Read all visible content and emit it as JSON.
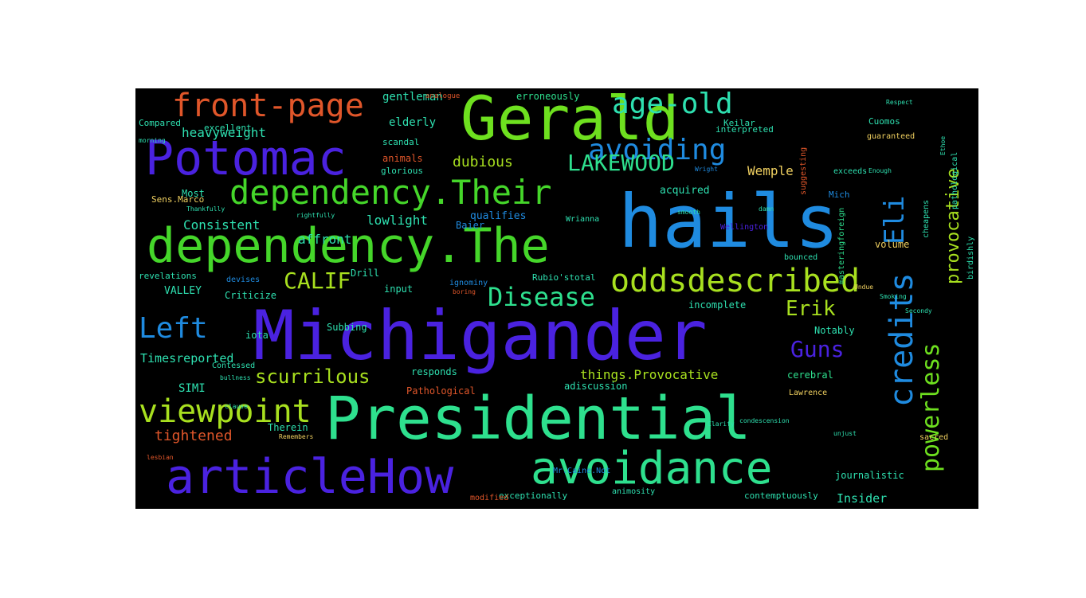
{
  "word_cloud": {
    "background": "#000000",
    "words": [
      {
        "text": "Michigander",
        "color": "#4a22e0"
      },
      {
        "text": "Presidential",
        "color": "#2ee08e"
      },
      {
        "text": "hails",
        "color": "#1f8be0"
      },
      {
        "text": "Gerald",
        "color": "#6ee01f"
      },
      {
        "text": "dependency.The",
        "color": "#45d62a"
      },
      {
        "text": "articleHow",
        "color": "#4a22e0"
      },
      {
        "text": "avoidance",
        "color": "#2ee08e"
      },
      {
        "text": "Potomac",
        "color": "#4a22e0"
      },
      {
        "text": "dependency.Their",
        "color": "#45d62a"
      },
      {
        "text": "oddsdescribed",
        "color": "#a8e01f"
      },
      {
        "text": "front-page",
        "color": "#e0562a"
      },
      {
        "text": "avoiding",
        "color": "#1f8be0"
      },
      {
        "text": "age-old",
        "color": "#2ee0b0"
      },
      {
        "text": "viewpoint",
        "color": "#a8e01f"
      },
      {
        "text": "credits",
        "color": "#1f8be0"
      },
      {
        "text": "powerless",
        "color": "#6ee01f"
      },
      {
        "text": "Disease",
        "color": "#2ee08e"
      },
      {
        "text": "LAKEWOOD",
        "color": "#2ee08e"
      },
      {
        "text": "CALIF",
        "color": "#a8e01f"
      },
      {
        "text": "Left",
        "color": "#1f8be0"
      },
      {
        "text": "scurrilous",
        "color": "#a8e01f"
      },
      {
        "text": "Guns",
        "color": "#4a22e0"
      },
      {
        "text": "Eli",
        "color": "#1f8be0"
      },
      {
        "text": "Erik",
        "color": "#a8e01f"
      },
      {
        "text": "provocative",
        "color": "#a8e01f"
      },
      {
        "text": "tightened",
        "color": "#e0562a"
      },
      {
        "text": "dubious",
        "color": "#a8e01f"
      },
      {
        "text": "heavyweight",
        "color": "#2ee0b0"
      },
      {
        "text": "Consistent",
        "color": "#2ee0b0"
      },
      {
        "text": "lowlight",
        "color": "#2ee0b0"
      },
      {
        "text": "affront",
        "color": "#2ee0b0"
      },
      {
        "text": "Wemple",
        "color": "#f0d060"
      },
      {
        "text": "things.Provocative",
        "color": "#a8e01f"
      },
      {
        "text": "Timesreported",
        "color": "#2ee0b0"
      },
      {
        "text": "Insider",
        "color": "#2ee0b0"
      },
      {
        "text": "gentleman",
        "color": "#2ee0b0"
      },
      {
        "text": "elderly",
        "color": "#2ee0b0"
      },
      {
        "text": "erroneously",
        "color": "#2ee08e"
      },
      {
        "text": "acquired",
        "color": "#2ee0b0"
      },
      {
        "text": "qualifies",
        "color": "#1f8be0"
      },
      {
        "text": "Baier",
        "color": "#1f8be0"
      },
      {
        "text": "volume",
        "color": "#f0d060"
      },
      {
        "text": "incomplete",
        "color": "#2ee0b0"
      },
      {
        "text": "Notably",
        "color": "#2ee0b0"
      },
      {
        "text": "cerebral",
        "color": "#2ee08e"
      },
      {
        "text": "responds",
        "color": "#2ee0b0"
      },
      {
        "text": "input",
        "color": "#2ee0b0"
      },
      {
        "text": "Drill",
        "color": "#2ee0b0"
      },
      {
        "text": "Subbing",
        "color": "#2ee0b0"
      },
      {
        "text": "VALLEY",
        "color": "#2ee0b0"
      },
      {
        "text": "iota",
        "color": "#2ee0b0"
      },
      {
        "text": "SIMI",
        "color": "#2ee0b0"
      },
      {
        "text": "Therein",
        "color": "#2ee0b0"
      },
      {
        "text": "Pathological",
        "color": "#e0562a"
      },
      {
        "text": "adiscussion",
        "color": "#2ee0b0"
      },
      {
        "text": "journalistic",
        "color": "#2ee0b0"
      },
      {
        "text": "contemptuously",
        "color": "#2ee0b0"
      },
      {
        "text": "exceptionally",
        "color": "#2ee0b0"
      },
      {
        "text": "Most",
        "color": "#2ee0b0"
      },
      {
        "text": "Sens.Marco",
        "color": "#f0d060"
      },
      {
        "text": "revelations",
        "color": "#2ee0b0"
      },
      {
        "text": "Rubio'stotal",
        "color": "#2ee0b0"
      },
      {
        "text": "Cuomos",
        "color": "#2ee0b0"
      },
      {
        "text": "interpreted",
        "color": "#2ee0b0"
      },
      {
        "text": "Keilar",
        "color": "#2ee0b0"
      },
      {
        "text": "Compared",
        "color": "#2ee0b0"
      },
      {
        "text": "excellent",
        "color": "#2ee0b0"
      },
      {
        "text": "animals",
        "color": "#e0562a"
      },
      {
        "text": "glorious",
        "color": "#2ee0b0"
      },
      {
        "text": "scandal",
        "color": "#2ee0b0"
      },
      {
        "text": "Mich",
        "color": "#1f8be0"
      },
      {
        "text": "Wrianna",
        "color": "#2ee0b0"
      },
      {
        "text": "exceeds",
        "color": "#2ee0b0"
      },
      {
        "text": "guaranteed",
        "color": "#f0d060"
      },
      {
        "text": "bounced",
        "color": "#2ee0b0"
      },
      {
        "text": "Lawrence",
        "color": "#f0d060"
      },
      {
        "text": "Criticize",
        "color": "#2ee0b0"
      },
      {
        "text": "ignominy",
        "color": "#1f8be0"
      },
      {
        "text": "Contessed",
        "color": "#2ee0b0"
      },
      {
        "text": "masteringforeign",
        "color": "#2ee08e"
      },
      {
        "text": "pathological",
        "color": "#2ee0b0"
      },
      {
        "text": "suggesting",
        "color": "#e0562a"
      },
      {
        "text": "Mr.Caine.Not",
        "color": "#1f8be0"
      },
      {
        "text": "animosity",
        "color": "#2ee0b0"
      },
      {
        "text": "analogue",
        "color": "#e0562a"
      },
      {
        "text": "morning",
        "color": "#2ee0b0"
      },
      {
        "text": "Thankfully",
        "color": "#2ee0b0"
      },
      {
        "text": "rightfully",
        "color": "#2ee0b0"
      },
      {
        "text": "condescension",
        "color": "#2ee0b0"
      },
      {
        "text": "Remembers",
        "color": "#f0d060"
      },
      {
        "text": "boring",
        "color": "#e0562a"
      },
      {
        "text": "clause",
        "color": "#2ee0b0"
      },
      {
        "text": "lesbian",
        "color": "#e0562a"
      },
      {
        "text": "sacred",
        "color": "#f0d060"
      },
      {
        "text": "Wellington",
        "color": "#4a22e0"
      },
      {
        "text": "cheapens",
        "color": "#2ee0b0"
      },
      {
        "text": "birdishly",
        "color": "#2ee0b0"
      },
      {
        "text": "modified",
        "color": "#e0562a"
      },
      {
        "text": "smooth",
        "color": "#2ee0b0"
      },
      {
        "text": "damn",
        "color": "#2ee0b0"
      },
      {
        "text": "unjust",
        "color": "#2ee0b0"
      },
      {
        "text": "Smoking",
        "color": "#2ee0b0"
      },
      {
        "text": "Wright",
        "color": "#1f8be0"
      },
      {
        "text": "Ethoe",
        "color": "#2ee0b0"
      },
      {
        "text": "Enough",
        "color": "#2ee0b0"
      },
      {
        "text": "Respect",
        "color": "#2ee0b0"
      },
      {
        "text": "Clarify",
        "color": "#2ee0b0"
      },
      {
        "text": "devises",
        "color": "#1f8be0"
      },
      {
        "text": "bullness",
        "color": "#2ee0b0"
      },
      {
        "text": "Undue",
        "color": "#f0d060"
      },
      {
        "text": "Secondy",
        "color": "#2ee0b0"
      }
    ]
  }
}
